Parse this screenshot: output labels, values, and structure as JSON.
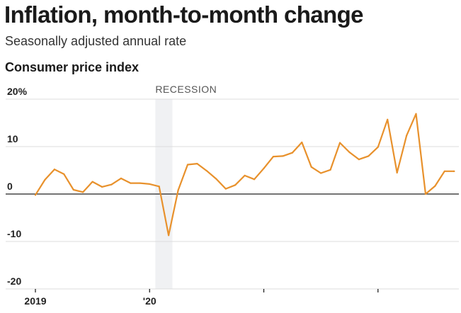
{
  "header": {
    "title": "Inflation, month-to-month change",
    "subtitle": "Seasonally adjusted annual rate"
  },
  "chart_data": {
    "type": "line",
    "title": "Consumer price index",
    "xlabel": "",
    "ylabel": "",
    "ylim": [
      -20,
      20
    ],
    "y_ticks": [
      {
        "value": 20,
        "label": "20%"
      },
      {
        "value": 10,
        "label": "10"
      },
      {
        "value": 0,
        "label": "0"
      },
      {
        "value": -10,
        "label": "-10"
      },
      {
        "value": -20,
        "label": "-20"
      }
    ],
    "x_ticks": [
      {
        "value": 0,
        "label": "2019"
      },
      {
        "value": 12,
        "label": "'20"
      },
      {
        "value": 24,
        "label": ""
      },
      {
        "value": 36,
        "label": ""
      }
    ],
    "grid": true,
    "line_color": "#e8912c",
    "recession": {
      "label": "RECESSION",
      "start": 13,
      "end": 15
    },
    "recession_color": "#f0f1f3",
    "series": [
      {
        "x": [
          0,
          1,
          2,
          3,
          4,
          5,
          6,
          7,
          8,
          9,
          10,
          11,
          12,
          13,
          14,
          15,
          16,
          17,
          18,
          19,
          20,
          21,
          22,
          23,
          24,
          25,
          26,
          27,
          28,
          29,
          30,
          31,
          32,
          33,
          34,
          35,
          36,
          37,
          38,
          39,
          40,
          41,
          42,
          43,
          44
        ],
        "values": [
          -0.2,
          3.0,
          5.2,
          4.2,
          0.9,
          0.4,
          2.6,
          1.5,
          2.0,
          3.3,
          2.3,
          2.3,
          2.1,
          1.6,
          -8.7,
          0.8,
          6.2,
          6.4,
          4.9,
          3.2,
          1.1,
          1.9,
          3.9,
          3.1,
          5.4,
          7.9,
          8.0,
          8.7,
          10.9,
          5.7,
          4.4,
          5.1,
          10.8,
          8.8,
          7.3,
          8.0,
          9.9,
          15.7,
          4.5,
          12.3,
          16.9,
          0.0,
          1.7,
          4.8,
          4.8
        ]
      }
    ]
  }
}
